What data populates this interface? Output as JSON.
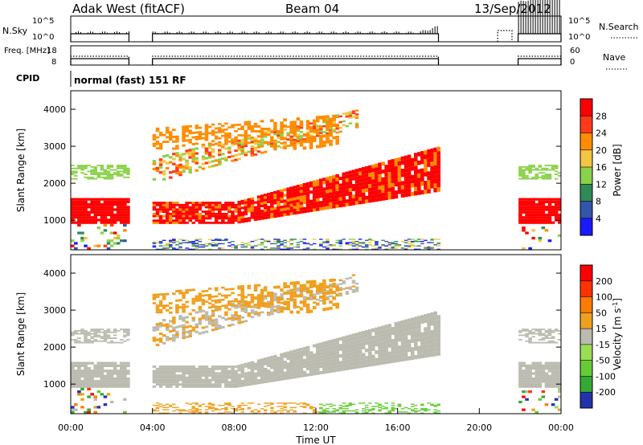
{
  "header": {
    "station": "Adak West (fitACF)",
    "beam": "Beam 04",
    "date": "13/Sep/2012"
  },
  "chart_data": [
    {
      "type": "line",
      "panel": "noise",
      "ylabel": "N.Sky",
      "ylabel_right": "N.Search",
      "yticks_left": [
        "10^5",
        "10^0"
      ],
      "yticks_right": [
        "10^5",
        "10^0"
      ],
      "series": [
        {
          "name": "N.Sky",
          "style": "solid",
          "segments": [
            [
              0.0,
              2.85
            ],
            [
              4.0,
              18.0
            ],
            [
              21.9,
              24.0
            ]
          ]
        },
        {
          "name": "N.Search",
          "style": "dotted",
          "segments": [
            [
              20.9,
              21.6
            ]
          ]
        }
      ]
    },
    {
      "type": "line",
      "panel": "frequency",
      "ylabel": "Freq. [MHz]",
      "ylabel_right": "Nave",
      "yticks_left": [
        "18",
        "8"
      ],
      "yticks_right": [
        "60",
        "0"
      ],
      "series": [
        {
          "name": "Freq.",
          "style": "solid",
          "segments": [
            [
              0.0,
              2.85
            ],
            [
              4.0,
              18.0
            ],
            [
              21.9,
              24.0
            ]
          ]
        },
        {
          "name": "Nave",
          "style": "dotted",
          "segments": [
            [
              0.0,
              2.85
            ],
            [
              4.0,
              18.0
            ],
            [
              21.9,
              24.0
            ]
          ]
        }
      ]
    },
    {
      "type": "table",
      "panel": "cpid",
      "label": "CPID",
      "text": "normal (fast) 151 RF"
    },
    {
      "type": "heatmap",
      "panel": "power",
      "xlabel": "",
      "ylabel": "Slant Range [km]",
      "ylim": [
        200,
        4500
      ],
      "yticks": [
        1000,
        2000,
        3000,
        4000
      ],
      "xlim": [
        0,
        24
      ],
      "colorbar": {
        "label": "Power [dB]",
        "ticks": [
          4,
          8,
          12,
          16,
          20,
          24,
          28
        ],
        "colors": [
          "#1a1aff",
          "#3355aa",
          "#2e8b57",
          "#8bd24a",
          "#f4c542",
          "#ff8c00",
          "#ff3a1a",
          "#ff0000"
        ]
      },
      "gaps_hours": [
        [
          2.85,
          4.0
        ],
        [
          18.0,
          19.8
        ],
        [
          20.0,
          21.9
        ]
      ]
    },
    {
      "type": "heatmap",
      "panel": "velocity",
      "xlabel": "Time UT",
      "ylabel": "Slant Range [km]",
      "ylim": [
        200,
        4500
      ],
      "yticks": [
        1000,
        2000,
        3000,
        4000
      ],
      "xlim": [
        0,
        24
      ],
      "xticks": [
        "00:00",
        "04:00",
        "08:00",
        "12:00",
        "16:00",
        "20:00",
        "00:00"
      ],
      "colorbar": {
        "label": "Velocity [m s^-1]",
        "ticks": [
          200,
          100,
          50,
          15,
          -15,
          -50,
          -100,
          -200
        ],
        "colors": [
          "#2233aa",
          "#33aa33",
          "#66cc33",
          "#99dd55",
          "#bbbbb0",
          "#f0a020",
          "#ff7a00",
          "#ff3300",
          "#ff0000"
        ]
      }
    }
  ]
}
